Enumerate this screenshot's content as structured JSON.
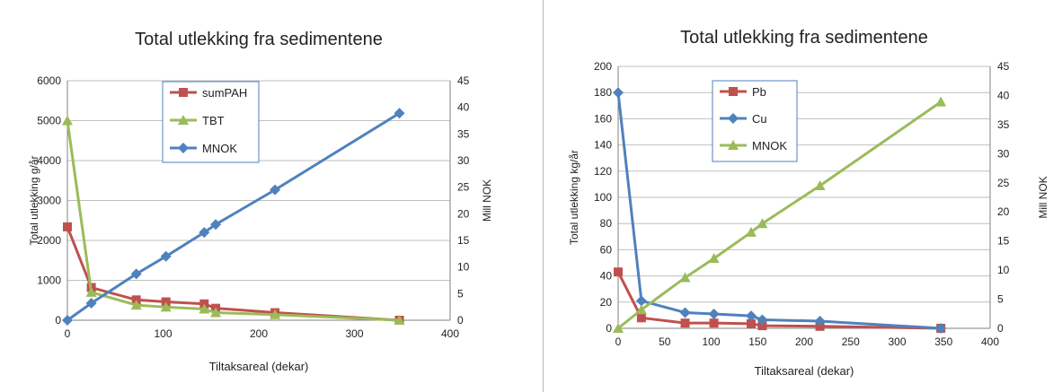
{
  "chart_data": [
    {
      "type": "line",
      "title": "Total utlekking fra sedimentene",
      "xlabel": "Tiltaksareal (dekar)",
      "ylabel": "Total utlekking g/år",
      "y2label": "Mill NOK",
      "xlim": [
        0,
        400
      ],
      "xticks": [
        0,
        100,
        200,
        300,
        400
      ],
      "ylim": [
        0,
        6000
      ],
      "yticks": [
        0,
        1000,
        2000,
        3000,
        4000,
        5000,
        6000
      ],
      "y2lim": [
        0,
        45
      ],
      "y2ticks": [
        0,
        5,
        10,
        15,
        20,
        25,
        30,
        35,
        40,
        45
      ],
      "grid": "horizontal",
      "legend_position": "top-center",
      "series": [
        {
          "name": "sumPAH",
          "axis": "left",
          "color": "#c0504d",
          "marker": "square",
          "x": [
            0,
            25,
            72,
            103,
            143,
            155,
            217,
            347
          ],
          "y": [
            2340,
            820,
            510,
            460,
            410,
            300,
            190,
            0
          ]
        },
        {
          "name": "TBT",
          "axis": "left",
          "color": "#9bbb59",
          "marker": "triangle",
          "x": [
            0,
            25,
            72,
            103,
            143,
            155,
            217,
            347
          ],
          "y": [
            5000,
            700,
            380,
            330,
            280,
            190,
            140,
            0
          ]
        },
        {
          "name": "MNOK",
          "axis": "right",
          "color": "#4f81bd",
          "marker": "diamond",
          "x": [
            0,
            25,
            72,
            103,
            143,
            155,
            217,
            347
          ],
          "y": [
            0,
            3.2,
            8.7,
            12.0,
            16.5,
            18.0,
            24.5,
            38.9
          ]
        }
      ]
    },
    {
      "type": "line",
      "title": "Total utlekking fra sedimentene",
      "xlabel": "Tiltaksareal (dekar)",
      "ylabel": "Total utlekking kg/år",
      "y2label": "Mill NOK",
      "xlim": [
        0,
        400
      ],
      "xticks": [
        0,
        50,
        100,
        150,
        200,
        250,
        300,
        350,
        400
      ],
      "ylim": [
        0,
        200
      ],
      "yticks": [
        0,
        20,
        40,
        60,
        80,
        100,
        120,
        140,
        160,
        180,
        200
      ],
      "y2lim": [
        0,
        45
      ],
      "y2ticks": [
        0,
        5,
        10,
        15,
        20,
        25,
        30,
        35,
        40,
        45
      ],
      "grid": "horizontal",
      "legend_position": "top-center",
      "series": [
        {
          "name": "Pb",
          "axis": "left",
          "color": "#c0504d",
          "marker": "square",
          "x": [
            0,
            25,
            72,
            103,
            143,
            155,
            217,
            347
          ],
          "y": [
            43,
            8,
            4,
            4,
            3.5,
            2,
            1.5,
            0
          ]
        },
        {
          "name": "Cu",
          "axis": "left",
          "color": "#4f81bd",
          "marker": "diamond",
          "x": [
            0,
            25,
            72,
            103,
            143,
            155,
            217,
            347
          ],
          "y": [
            180,
            21,
            12,
            11,
            9.5,
            6.5,
            5.5,
            0
          ]
        },
        {
          "name": "MNOK",
          "axis": "right",
          "color": "#9bbb59",
          "marker": "triangle",
          "x": [
            0,
            25,
            72,
            103,
            143,
            155,
            217,
            347
          ],
          "y": [
            0,
            3.2,
            8.7,
            12.0,
            16.5,
            18.0,
            24.5,
            38.9
          ]
        }
      ]
    }
  ]
}
